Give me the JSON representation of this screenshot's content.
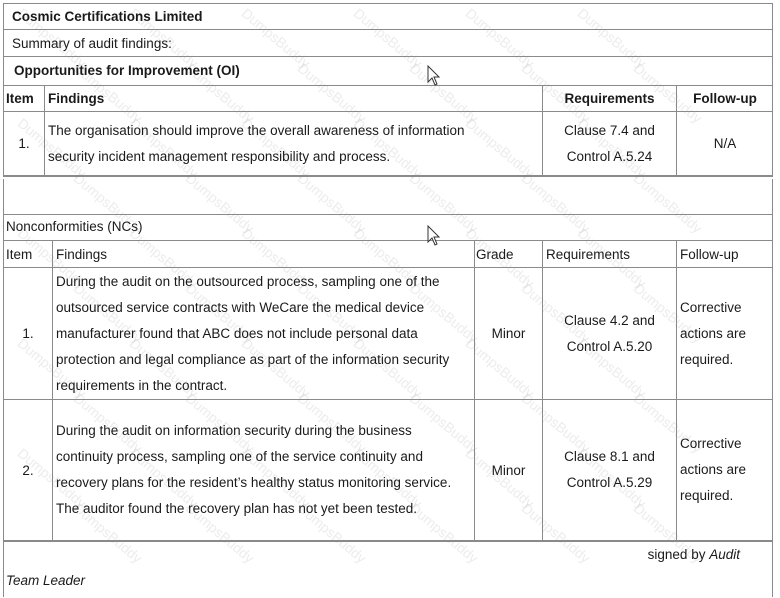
{
  "company": "Cosmic Certifications Limited",
  "summary_label": "Summary of audit findings:",
  "oi": {
    "title": "Opportunities for Improvement (OI)",
    "headers": {
      "item": "Item",
      "findings": "Findings",
      "requirements": "Requirements",
      "followup": "Follow-up"
    },
    "rows": [
      {
        "item": "1.",
        "findings": "The organisation should improve the overall awareness of information security incident management responsibility and process.",
        "req_line1": "Clause 7.4 and",
        "req_line2": "Control A.5.24",
        "followup": "N/A"
      }
    ]
  },
  "nc": {
    "title": "Nonconformities (NCs)",
    "headers": {
      "item": "Item",
      "findings": "Findings",
      "grade": "Grade",
      "requirements": "Requirements",
      "followup": "Follow-up"
    },
    "rows": [
      {
        "item": "1.",
        "findings": "During the audit on the outsourced process, sampling one of the outsourced service contracts with WeCare the medical device manufacturer found that ABC does not include personal data protection and legal compliance as part of the information security requirements in the contract.",
        "grade": "Minor",
        "req_line1": "Clause 4.2 and",
        "req_line2": "Control A.5.20",
        "followup": "Corrective actions are required."
      },
      {
        "item": "2.",
        "findings": "During the audit on information security during the business continuity process, sampling one of the service continuity and recovery plans for the resident’s healthy status monitoring service. The auditor found the recovery plan has not yet been tested.",
        "grade": "Minor",
        "req_line1": "Clause 8.1 and",
        "req_line2": "Control A.5.29",
        "followup": "Corrective actions are required."
      }
    ]
  },
  "footer": {
    "signed_by": "signed by",
    "signer_line1": "Audit",
    "signer_line2": "Team Leader"
  },
  "watermark": "DumpsBuddy"
}
